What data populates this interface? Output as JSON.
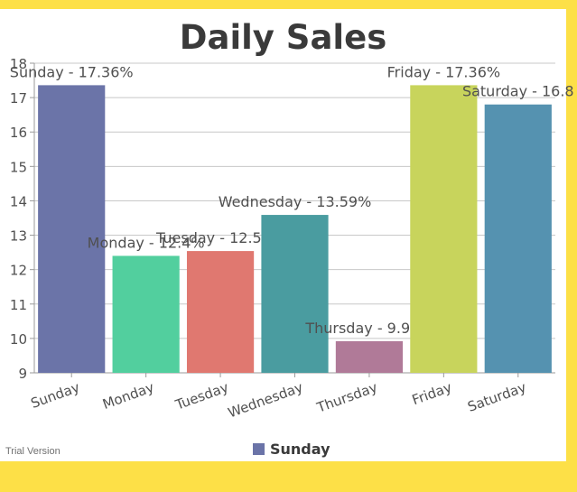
{
  "colors": {
    "frame": "#fde047",
    "axis": "#9a9a9a",
    "grid": "#c8c8c8",
    "text": "#505050"
  },
  "watermark": "Trial Version",
  "legend": {
    "label": "Sunday",
    "color": "#6b74a8"
  },
  "chart_data": {
    "type": "bar",
    "title": "Daily Sales",
    "categories": [
      "Sunday",
      "Monday",
      "Tuesday",
      "Wednesday",
      "Thursday",
      "Friday",
      "Saturday"
    ],
    "values": [
      17.36,
      12.4,
      12.54,
      13.59,
      9.92,
      17.36,
      16.8
    ],
    "data_labels": [
      "Sunday - 17.36%",
      "Monday - 12.4%",
      "Tuesday - 12.54%",
      "Wednesday - 13.59%",
      "Thursday - 9.92%",
      "Friday - 17.36%",
      "Saturday - 16.8"
    ],
    "colors": [
      "#6b74a8",
      "#52cf9e",
      "#e07870",
      "#4a9ca0",
      "#b07a98",
      "#c8d45c",
      "#5592b0"
    ],
    "ylim": [
      9,
      18
    ],
    "yticks": [
      9,
      10,
      11,
      12,
      13,
      14,
      15,
      16,
      17,
      18
    ],
    "xlabel": "",
    "ylabel": "",
    "grid": true,
    "legend_position": "bottom"
  }
}
